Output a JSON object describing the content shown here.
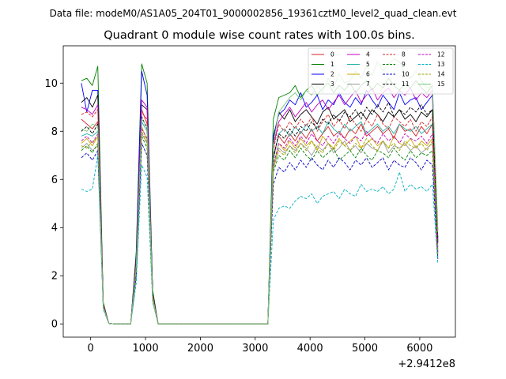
{
  "figure": {
    "suptitle": "Data file: modeM0/AS1A05_204T01_9000002856_19361cztM0_level2_quad_clean.evt",
    "title": "Quadrant 0 module wise count rates with 100.0s bins."
  },
  "chart_data": {
    "type": "line",
    "title": "Quadrant 0 module wise count rates with 100.0s bins.",
    "xlabel": "",
    "ylabel": "",
    "x_offset_label": "+2.9412e8",
    "xlim": [
      -500,
      6650
    ],
    "ylim": [
      -0.55,
      11.55
    ],
    "xticks": [
      0,
      1000,
      2000,
      3000,
      4000,
      5000,
      6000
    ],
    "yticks": [
      0,
      2,
      4,
      6,
      8,
      10
    ],
    "xtick_labels": [
      "0",
      "1000",
      "2000",
      "3000",
      "4000",
      "5000",
      "6000"
    ],
    "ytick_labels": [
      "0",
      "2",
      "4",
      "6",
      "8",
      "10"
    ],
    "grid": false,
    "legend": {
      "placement": "top-right",
      "columns": 4
    },
    "x": [
      -170,
      -70,
      30,
      130,
      230,
      330,
      430,
      530,
      630,
      730,
      830,
      930,
      1030,
      1130,
      1230,
      1330,
      1430,
      1530,
      1630,
      1730,
      1830,
      1930,
      2030,
      2130,
      2230,
      2330,
      2430,
      2530,
      2630,
      2730,
      2830,
      2930,
      3030,
      3130,
      3230,
      3330,
      3430,
      3530,
      3630,
      3730,
      3830,
      3930,
      4030,
      4130,
      4230,
      4330,
      4430,
      4530,
      4630,
      4730,
      4830,
      4930,
      5030,
      5130,
      5230,
      5330,
      5430,
      5530,
      5630,
      5730,
      5830,
      5930,
      6030,
      6130,
      6230,
      6330
    ],
    "series": [
      {
        "name": "0",
        "color": "#d62020",
        "dashed": false,
        "values": [
          8.5,
          8.3,
          8.1,
          8.4,
          0.8,
          0.02,
          0,
          0,
          0,
          0,
          2.5,
          8.9,
          8.3,
          1.2,
          0,
          0,
          0,
          0,
          0,
          0,
          0,
          0,
          0,
          0,
          0,
          0,
          0,
          0,
          0,
          0,
          0,
          0,
          0,
          0,
          0,
          7.0,
          7.8,
          7.5,
          7.9,
          7.6,
          8.0,
          7.7,
          8.1,
          7.6,
          7.9,
          8.2,
          7.8,
          8.0,
          7.7,
          8.1,
          7.9,
          8.3,
          7.8,
          8.0,
          8.2,
          7.9,
          8.1,
          7.7,
          8.3,
          8.0,
          8.1,
          7.8,
          8.2,
          7.9,
          8.3,
          3.2
        ]
      },
      {
        "name": "1",
        "color": "#008000",
        "dashed": false,
        "values": [
          10.1,
          10.2,
          9.9,
          10.7,
          0.9,
          0.02,
          0,
          0,
          0,
          0,
          3.0,
          10.8,
          10.0,
          1.4,
          0,
          0,
          0,
          0,
          0,
          0,
          0,
          0,
          0,
          0,
          0,
          0,
          0,
          0,
          0,
          0,
          0,
          0,
          0,
          0,
          0,
          8.5,
          9.4,
          9.5,
          9.6,
          9.9,
          9.4,
          9.7,
          9.9,
          9.5,
          9.8,
          10.0,
          9.6,
          9.9,
          9.7,
          10.0,
          9.6,
          9.9,
          10.1,
          9.7,
          10.0,
          9.8,
          10.2,
          9.9,
          9.7,
          10.0,
          9.8,
          10.1,
          9.8,
          9.6,
          9.9,
          3.9
        ]
      },
      {
        "name": "2",
        "color": "#0000ff",
        "dashed": false,
        "values": [
          10.0,
          8.8,
          9.7,
          9.7,
          0.8,
          0.02,
          0,
          0,
          0,
          0,
          2.8,
          10.5,
          9.5,
          1.3,
          0,
          0,
          0,
          0,
          0,
          0,
          0,
          0,
          0,
          0,
          0,
          0,
          0,
          0,
          0,
          0,
          0,
          0,
          0,
          0,
          0,
          7.8,
          8.7,
          8.9,
          9.3,
          9.1,
          9.6,
          9.0,
          9.2,
          9.5,
          8.9,
          9.3,
          9.1,
          9.6,
          9.2,
          9.0,
          9.4,
          9.1,
          9.7,
          9.3,
          9.0,
          9.5,
          9.2,
          8.9,
          9.6,
          9.1,
          9.3,
          9.4,
          8.9,
          9.2,
          9.5,
          3.5
        ]
      },
      {
        "name": "3",
        "color": "#000000",
        "dashed": false,
        "values": [
          9.2,
          9.4,
          9.0,
          9.5,
          0.8,
          0.02,
          0,
          0,
          0,
          0,
          2.7,
          9.1,
          8.9,
          1.3,
          0,
          0,
          0,
          0,
          0,
          0,
          0,
          0,
          0,
          0,
          0,
          0,
          0,
          0,
          0,
          0,
          0,
          0,
          0,
          0,
          0,
          7.6,
          8.8,
          8.5,
          8.9,
          8.4,
          8.7,
          8.9,
          8.6,
          8.3,
          8.8,
          9.0,
          8.5,
          8.7,
          8.9,
          8.4,
          8.6,
          8.8,
          8.5,
          8.9,
          8.7,
          8.4,
          8.8,
          8.6,
          8.9,
          8.5,
          8.7,
          8.4,
          8.8,
          8.6,
          8.9,
          3.6
        ]
      },
      {
        "name": "4",
        "color": "#c000c0",
        "dashed": false,
        "values": [
          9.0,
          8.9,
          8.7,
          9.1,
          0.8,
          0.02,
          0,
          0,
          0,
          0,
          2.6,
          9.3,
          9.0,
          1.2,
          0,
          0,
          0,
          0,
          0,
          0,
          0,
          0,
          0,
          0,
          0,
          0,
          0,
          0,
          0,
          0,
          0,
          0,
          0,
          0,
          0,
          7.4,
          8.4,
          8.7,
          9.0,
          8.6,
          8.9,
          9.2,
          8.8,
          9.1,
          9.3,
          8.9,
          9.2,
          9.5,
          9.1,
          9.4,
          9.7,
          9.2,
          9.5,
          9.8,
          9.3,
          9.6,
          9.8,
          9.4,
          9.7,
          9.5,
          9.8,
          9.3,
          9.6,
          9.4,
          9.7,
          3.4
        ]
      },
      {
        "name": "5",
        "color": "#20b2aa",
        "dashed": false,
        "values": [
          7.8,
          7.9,
          7.8,
          8.0,
          0.7,
          0.02,
          0,
          0,
          0,
          0,
          2.3,
          8.4,
          8.0,
          1.1,
          0,
          0,
          0,
          0,
          0,
          0,
          0,
          0,
          0,
          0,
          0,
          0,
          0,
          0,
          0,
          0,
          0,
          0,
          0,
          0,
          0,
          6.8,
          7.9,
          8.1,
          7.8,
          8.2,
          7.9,
          8.3,
          8.0,
          8.2,
          7.9,
          8.4,
          8.1,
          7.9,
          8.3,
          8.0,
          8.2,
          8.4,
          7.9,
          8.1,
          8.3,
          8.0,
          8.2,
          7.9,
          8.3,
          8.1,
          8.0,
          8.2,
          7.9,
          8.1,
          8.3,
          3.1
        ]
      },
      {
        "name": "6",
        "color": "#ccaa00",
        "dashed": false,
        "values": [
          7.5,
          7.7,
          7.4,
          7.8,
          0.7,
          0.02,
          0,
          0,
          0,
          0,
          2.2,
          8.2,
          7.6,
          1.1,
          0,
          0,
          0,
          0,
          0,
          0,
          0,
          0,
          0,
          0,
          0,
          0,
          0,
          0,
          0,
          0,
          0,
          0,
          0,
          0,
          0,
          6.5,
          7.5,
          7.2,
          7.6,
          7.3,
          7.7,
          7.4,
          7.6,
          7.2,
          7.8,
          7.5,
          7.3,
          7.7,
          7.4,
          7.6,
          7.8,
          7.3,
          7.5,
          7.7,
          7.4,
          7.6,
          7.3,
          7.8,
          7.5,
          7.4,
          7.7,
          7.3,
          7.6,
          7.4,
          7.7,
          3.0
        ]
      },
      {
        "name": "7",
        "color": "#9a9a9a",
        "dashed": false,
        "values": [
          7.3,
          7.5,
          7.2,
          7.4,
          0.7,
          0.02,
          0,
          0,
          0,
          0,
          2.1,
          7.9,
          7.5,
          1.0,
          0,
          0,
          0,
          0,
          0,
          0,
          0,
          0,
          0,
          0,
          0,
          0,
          0,
          0,
          0,
          0,
          0,
          0,
          0,
          0,
          0,
          6.4,
          7.3,
          7.1,
          7.4,
          7.2,
          7.5,
          7.3,
          7.0,
          7.4,
          7.2,
          7.5,
          7.1,
          7.3,
          7.6,
          7.2,
          7.4,
          7.1,
          7.5,
          7.3,
          7.2,
          7.6,
          7.1,
          7.4,
          7.3,
          7.5,
          7.2,
          7.4,
          7.1,
          7.3,
          7.5,
          2.9
        ]
      },
      {
        "name": "8",
        "color": "#d62020",
        "dashed": true,
        "values": [
          8.7,
          8.8,
          8.6,
          8.9,
          0.8,
          0.02,
          0,
          0,
          0,
          0,
          2.6,
          8.8,
          8.5,
          1.2,
          0,
          0,
          0,
          0,
          0,
          0,
          0,
          0,
          0,
          0,
          0,
          0,
          0,
          0,
          0,
          0,
          0,
          0,
          0,
          0,
          0,
          7.2,
          8.3,
          8.0,
          8.4,
          8.1,
          8.5,
          8.2,
          8.6,
          8.0,
          8.4,
          8.7,
          8.2,
          8.5,
          8.1,
          8.6,
          8.3,
          8.0,
          8.5,
          8.2,
          8.7,
          8.3,
          8.1,
          8.6,
          8.4,
          8.2,
          8.5,
          8.0,
          8.4,
          8.2,
          8.6,
          3.3
        ]
      },
      {
        "name": "9",
        "color": "#008000",
        "dashed": true,
        "values": [
          7.2,
          7.4,
          7.1,
          7.5,
          0.7,
          0.02,
          0,
          0,
          0,
          0,
          2.1,
          7.8,
          7.3,
          1.0,
          0,
          0,
          0,
          0,
          0,
          0,
          0,
          0,
          0,
          0,
          0,
          0,
          0,
          0,
          0,
          0,
          0,
          0,
          0,
          0,
          0,
          6.3,
          7.0,
          6.8,
          7.2,
          6.9,
          7.3,
          7.0,
          6.8,
          7.2,
          6.9,
          7.1,
          7.3,
          6.8,
          7.0,
          7.2,
          6.9,
          7.3,
          7.0,
          6.8,
          7.2,
          7.1,
          6.9,
          7.3,
          7.0,
          6.8,
          7.2,
          6.9,
          7.1,
          7.0,
          7.2,
          2.8
        ]
      },
      {
        "name": "10",
        "color": "#0000c8",
        "dashed": true,
        "values": [
          6.9,
          7.1,
          6.8,
          7.2,
          0.7,
          0.02,
          0,
          0,
          0,
          0,
          2.0,
          7.5,
          7.0,
          1.0,
          0,
          0,
          0,
          0,
          0,
          0,
          0,
          0,
          0,
          0,
          0,
          0,
          0,
          0,
          0,
          0,
          0,
          0,
          0,
          0,
          0,
          5.8,
          6.5,
          6.3,
          6.7,
          6.4,
          6.8,
          6.5,
          6.9,
          6.6,
          6.4,
          6.8,
          6.5,
          6.9,
          6.7,
          6.4,
          6.8,
          6.6,
          6.9,
          6.5,
          6.7,
          6.9,
          6.4,
          6.8,
          6.6,
          6.5,
          6.9,
          6.7,
          6.4,
          6.8,
          6.6,
          2.7
        ]
      },
      {
        "name": "11",
        "color": "#000000",
        "dashed": true,
        "values": [
          8.0,
          8.2,
          7.9,
          8.3,
          0.7,
          0.02,
          0,
          0,
          0,
          0,
          2.4,
          8.6,
          8.1,
          1.1,
          0,
          0,
          0,
          0,
          0,
          0,
          0,
          0,
          0,
          0,
          0,
          0,
          0,
          0,
          0,
          0,
          0,
          0,
          0,
          0,
          0,
          6.9,
          7.9,
          7.7,
          8.1,
          7.8,
          8.2,
          8.0,
          8.4,
          8.1,
          8.5,
          8.3,
          8.7,
          8.4,
          8.8,
          8.6,
          8.9,
          8.5,
          9.0,
          8.7,
          9.1,
          8.8,
          9.2,
          8.6,
          8.9,
          8.7,
          9.0,
          8.8,
          9.1,
          8.7,
          8.9,
          3.4
        ]
      },
      {
        "name": "12",
        "color": "#c000c0",
        "dashed": true,
        "values": [
          7.6,
          7.8,
          7.5,
          7.9,
          0.7,
          0.02,
          0,
          0,
          0,
          0,
          2.3,
          8.1,
          7.7,
          1.1,
          0,
          0,
          0,
          0,
          0,
          0,
          0,
          0,
          0,
          0,
          0,
          0,
          0,
          0,
          0,
          0,
          0,
          0,
          0,
          0,
          0,
          6.6,
          7.5,
          7.3,
          7.7,
          7.4,
          7.8,
          7.5,
          7.9,
          7.6,
          7.4,
          7.8,
          7.5,
          7.9,
          7.7,
          7.5,
          7.8,
          7.6,
          8.0,
          7.7,
          7.5,
          7.9,
          7.6,
          7.8,
          7.5,
          7.9,
          7.7,
          7.6,
          7.8,
          7.5,
          7.9,
          3.0
        ]
      },
      {
        "name": "13",
        "color": "#00b0c0",
        "dashed": true,
        "values": [
          5.6,
          5.5,
          5.6,
          7.0,
          0.6,
          0.02,
          0,
          0,
          0,
          0,
          1.7,
          6.6,
          6.1,
          0.9,
          0,
          0,
          0,
          0,
          0,
          0,
          0,
          0,
          0,
          0,
          0,
          0,
          0,
          0,
          0,
          0,
          0,
          0,
          0,
          0,
          0,
          4.3,
          4.8,
          4.9,
          4.8,
          5.1,
          5.3,
          5.2,
          5.4,
          5.0,
          5.3,
          5.4,
          5.5,
          5.2,
          5.6,
          5.4,
          5.3,
          5.8,
          5.5,
          5.6,
          5.5,
          5.7,
          5.4,
          5.6,
          6.3,
          5.5,
          5.8,
          5.6,
          5.7,
          5.5,
          5.8,
          2.5
        ]
      },
      {
        "name": "14",
        "color": "#a0a000",
        "dashed": true,
        "values": [
          7.4,
          7.3,
          7.6,
          7.7,
          0.7,
          0.02,
          0,
          0,
          0,
          0,
          2.2,
          8.0,
          7.5,
          1.0,
          0,
          0,
          0,
          0,
          0,
          0,
          0,
          0,
          0,
          0,
          0,
          0,
          0,
          0,
          0,
          0,
          0,
          0,
          0,
          0,
          0,
          6.5,
          7.2,
          7.0,
          7.4,
          7.1,
          7.5,
          7.2,
          7.6,
          7.3,
          7.1,
          7.5,
          7.2,
          7.6,
          7.4,
          7.2,
          7.5,
          7.3,
          7.7,
          7.4,
          7.2,
          7.6,
          7.3,
          7.5,
          7.2,
          7.6,
          7.4,
          7.3,
          7.5,
          7.2,
          7.6,
          2.9
        ]
      },
      {
        "name": "15",
        "color": "#78c878",
        "dashed": false,
        "values": [
          8.1,
          8.0,
          8.3,
          8.2,
          0.7,
          0.02,
          0,
          0,
          0,
          0,
          2.4,
          8.5,
          8.2,
          1.1,
          0,
          0,
          0,
          0,
          0,
          0,
          0,
          0,
          0,
          0,
          0,
          0,
          0,
          0,
          0,
          0,
          0,
          0,
          0,
          0,
          0,
          7.5,
          8.8,
          9.1,
          9.4,
          9.6,
          9.3,
          9.7,
          9.5,
          9.9,
          9.6,
          10.2,
          9.8,
          10.4,
          10.0,
          10.1,
          10.5,
          10.2,
          10.7,
          10.3,
          10.9,
          10.5,
          10.8,
          11.0,
          10.9,
          10.4,
          10.2,
          10.5,
          10.1,
          9.8,
          9.9,
          3.8
        ]
      }
    ]
  }
}
